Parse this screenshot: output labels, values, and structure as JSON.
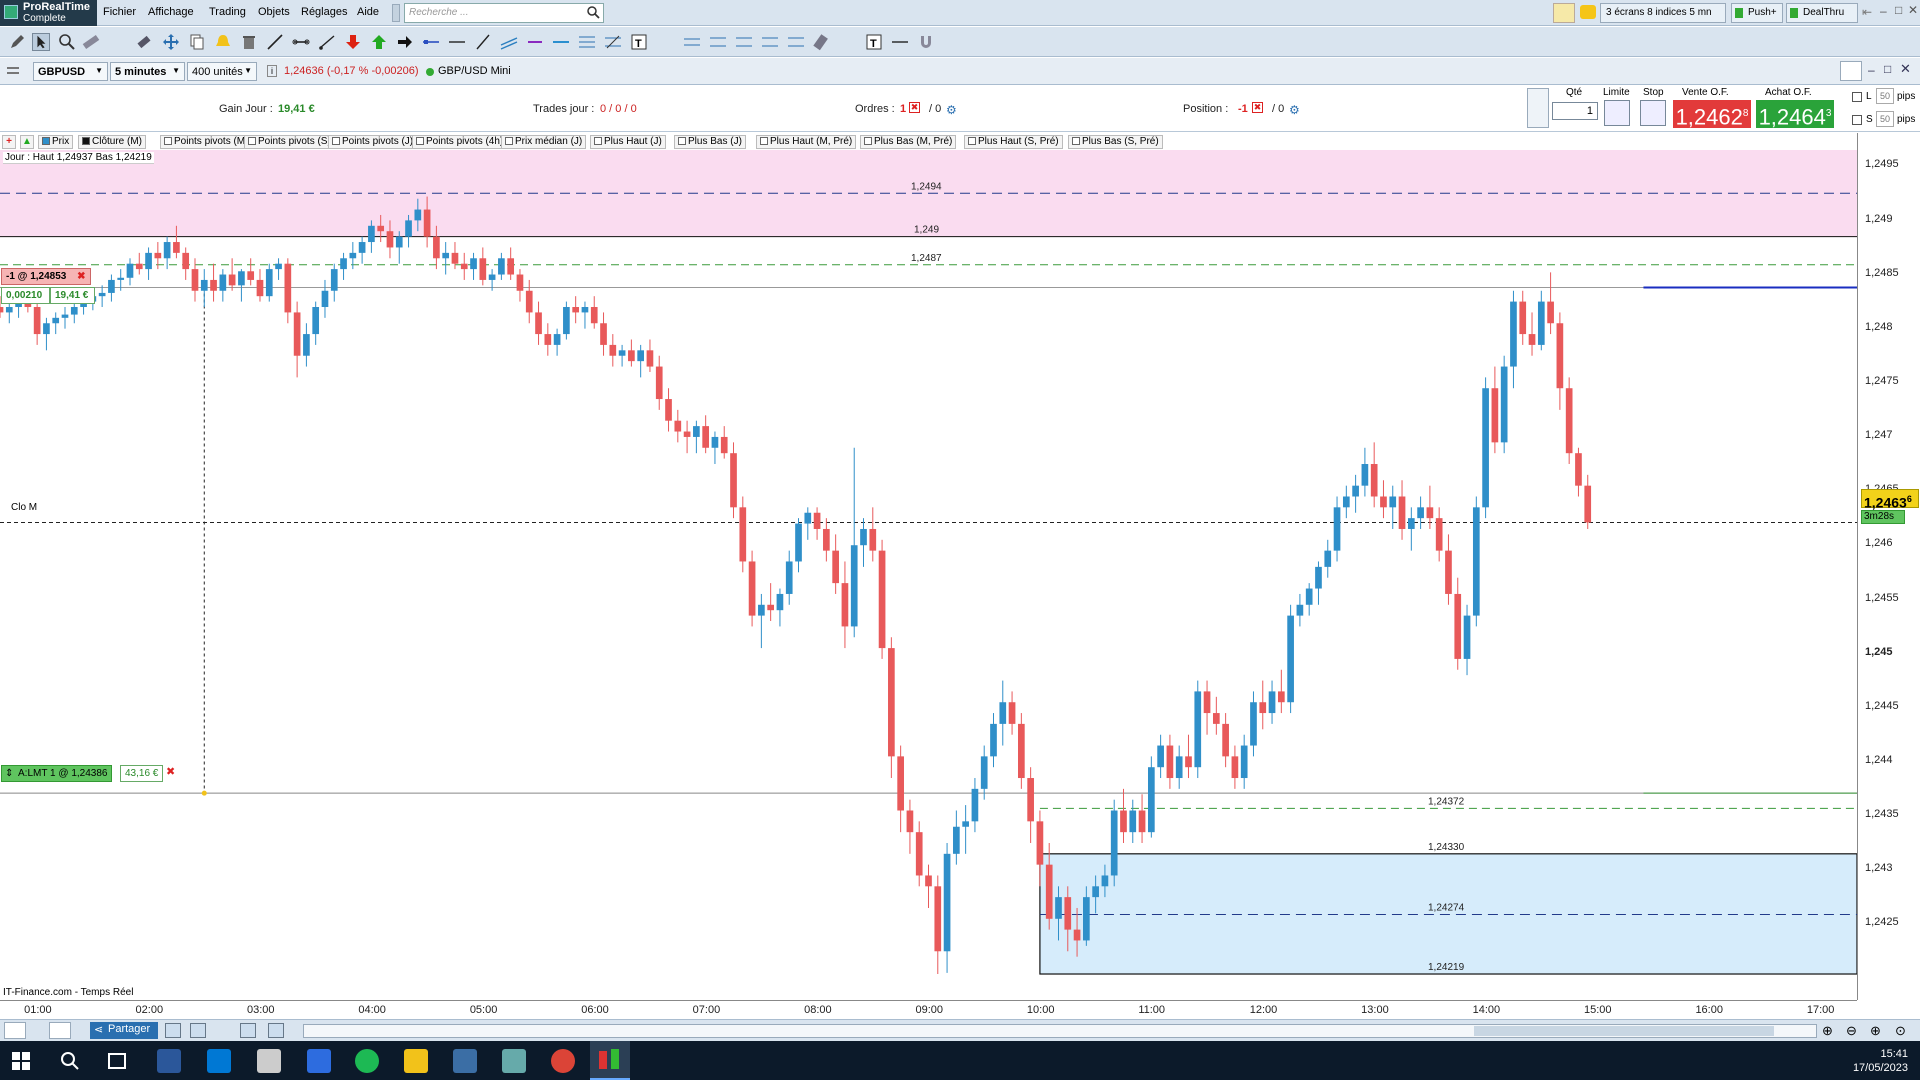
{
  "brand": {
    "line1": "ProRealTime",
    "line2": "Complete"
  },
  "menu": [
    "Fichier",
    "Affichage",
    "Trading",
    "Objets",
    "Réglages",
    "Aide"
  ],
  "search": {
    "placeholder": "Recherche ..."
  },
  "right_top": {
    "screens": "3 écrans 8 indices 5 mn",
    "push": "Push+",
    "dealthru": "DealThru"
  },
  "instrument": {
    "symbol": "GBPUSD",
    "timeframe": "5 minutes",
    "units": "400 unités",
    "quote": "1,24636 (-0,17 % -0,00206)",
    "name": "GBP/USD Mini"
  },
  "panel": {
    "gain_label": "Gain Jour :",
    "gain_value": "19,41 €",
    "trades_label": "Trades jour :",
    "trades_value": "0 / 0 / 0",
    "ordres_label": "Ordres :",
    "ordres_v1": "1",
    "ordres_v2": "/ 0",
    "position_label": "Position :",
    "position_v1": "-1",
    "position_v2": "/ 0",
    "qty_label": "Qté",
    "qty_value": "1",
    "limite_label": "Limite",
    "stop_label": "Stop",
    "vente_label": "Vente O.F.",
    "vente_value": "1,2462",
    "vente_sup": "8",
    "achat_label": "Achat O.F.",
    "achat_value": "1,2464",
    "achat_sup": "3",
    "l_label": "L",
    "s_label": "S",
    "l_pips": "50",
    "s_pips": "50",
    "pips": "pips"
  },
  "legend": [
    "Prix",
    "Clôture (M)",
    "Points pivots (M)",
    "Points pivots (S)",
    "Points pivots (J)",
    "Points pivots (4h)",
    "Prix médian (J)",
    "Plus Haut (J)",
    "Plus Bas (J)",
    "Plus Haut (M, Pré)",
    "Plus Bas (M, Pré)",
    "Plus Haut (S, Pré)",
    "Plus Bas (S, Pré)"
  ],
  "chart_labels": {
    "day_info": "Jour : Haut 1,24937 Bas 1,24219",
    "clo_m": "Clo M",
    "source": "IT-Finance.com - Temps Réel",
    "lvl_12494": "1,2494",
    "lvl_1249": "1,249",
    "lvl_12487": "1,2487",
    "lvl_124372": "1,24372",
    "lvl_124330": "1,24330",
    "lvl_124274": "1,24274",
    "lvl_124219": "1,24219"
  },
  "orders": {
    "position": "-1 @ 1,24853",
    "pl_pts": "0,00210",
    "pl_eur": "19,41 €",
    "limit_order": "A:LMT  1 @ 1,24386",
    "limit_eur": "43,16 €"
  },
  "price_axis": {
    "ticks": [
      "1,2495",
      "1,249",
      "1,2485",
      "1,248",
      "1,2475",
      "1,247",
      "1,2465",
      "1,246",
      "1,2455",
      "1,245",
      "1,2445",
      "1,244",
      "1,2435",
      "1,243",
      "1,2425"
    ],
    "current": "1,2463",
    "current_sup": "6",
    "countdown": "3m28s"
  },
  "time_axis": [
    "01:00",
    "02:00",
    "03:00",
    "04:00",
    "05:00",
    "06:00",
    "07:00",
    "08:00",
    "09:00",
    "10:00",
    "11:00",
    "12:00",
    "13:00",
    "14:00",
    "15:00",
    "16:00",
    "17:00"
  ],
  "bottom": {
    "share": "Partager"
  },
  "clock": {
    "time": "15:41",
    "date": "17/05/2023"
  },
  "colors": {
    "bull": "#2f8fc9",
    "bear": "#e8595a",
    "pink_zone": "#fadcf0",
    "blue_zone": "#d6ecfb"
  },
  "chart_data": {
    "type": "candlestick",
    "y_range": [
      1.24195,
      1.2498
    ],
    "x_range": [
      "00:40",
      "17:20"
    ],
    "candles_start": "00:40",
    "interval_minutes": 5,
    "ohlc": [
      [
        1.24835,
        1.24845,
        1.24825,
        1.2483
      ],
      [
        1.2483,
        1.2484,
        1.2482,
        1.24835
      ],
      [
        1.24835,
        1.24845,
        1.24825,
        1.2484
      ],
      [
        1.2484,
        1.2485,
        1.2483,
        1.24835
      ],
      [
        1.24835,
        1.24845,
        1.248,
        1.2481
      ],
      [
        1.2481,
        1.24825,
        1.24795,
        1.2482
      ],
      [
        1.2482,
        1.2483,
        1.2481,
        1.24825
      ],
      [
        1.24825,
        1.24835,
        1.24815,
        1.24828
      ],
      [
        1.24828,
        1.2484,
        1.2482,
        1.24835
      ],
      [
        1.24835,
        1.24845,
        1.24828,
        1.2484
      ],
      [
        1.2484,
        1.2485,
        1.24832,
        1.24845
      ],
      [
        1.24845,
        1.24855,
        1.24835,
        1.24848
      ],
      [
        1.24848,
        1.24865,
        1.2484,
        1.2486
      ],
      [
        1.2486,
        1.2487,
        1.2485,
        1.24862
      ],
      [
        1.24862,
        1.2488,
        1.24855,
        1.24875
      ],
      [
        1.24875,
        1.24885,
        1.24865,
        1.2487
      ],
      [
        1.2487,
        1.2489,
        1.2486,
        1.24885
      ],
      [
        1.24885,
        1.24895,
        1.2487,
        1.2488
      ],
      [
        1.2488,
        1.249,
        1.2487,
        1.24895
      ],
      [
        1.24895,
        1.2491,
        1.2488,
        1.24885
      ],
      [
        1.24885,
        1.2489,
        1.2486,
        1.2487
      ],
      [
        1.2487,
        1.2488,
        1.2484,
        1.2485
      ],
      [
        1.2485,
        1.2487,
        1.24835,
        1.2486
      ],
      [
        1.2486,
        1.24875,
        1.2484,
        1.2485
      ],
      [
        1.2485,
        1.2487,
        1.2484,
        1.24865
      ],
      [
        1.24865,
        1.2488,
        1.2485,
        1.24855
      ],
      [
        1.24855,
        1.2487,
        1.2484,
        1.24868
      ],
      [
        1.24868,
        1.2488,
        1.24855,
        1.2486
      ],
      [
        1.2486,
        1.2487,
        1.2484,
        1.24845
      ],
      [
        1.24845,
        1.24875,
        1.2484,
        1.2487
      ],
      [
        1.2487,
        1.2488,
        1.2486,
        1.24875
      ],
      [
        1.24875,
        1.2488,
        1.2482,
        1.2483
      ],
      [
        1.2483,
        1.2484,
        1.2477,
        1.2479
      ],
      [
        1.2479,
        1.2482,
        1.2478,
        1.2481
      ],
      [
        1.2481,
        1.2484,
        1.248,
        1.24835
      ],
      [
        1.24835,
        1.2486,
        1.24825,
        1.2485
      ],
      [
        1.2485,
        1.24875,
        1.2484,
        1.2487
      ],
      [
        1.2487,
        1.24885,
        1.2486,
        1.2488
      ],
      [
        1.2488,
        1.24895,
        1.2487,
        1.24885
      ],
      [
        1.24885,
        1.249,
        1.24875,
        1.24895
      ],
      [
        1.24895,
        1.24915,
        1.24885,
        1.2491
      ],
      [
        1.2491,
        1.2492,
        1.24895,
        1.24905
      ],
      [
        1.24905,
        1.24915,
        1.2488,
        1.2489
      ],
      [
        1.2489,
        1.24905,
        1.24875,
        1.249
      ],
      [
        1.249,
        1.2492,
        1.2489,
        1.24915
      ],
      [
        1.24915,
        1.24935,
        1.24905,
        1.24925
      ],
      [
        1.24925,
        1.24937,
        1.2489,
        1.249
      ],
      [
        1.249,
        1.2491,
        1.2487,
        1.2488
      ],
      [
        1.2488,
        1.24895,
        1.24865,
        1.24885
      ],
      [
        1.24885,
        1.24895,
        1.2487,
        1.24875
      ],
      [
        1.24875,
        1.24885,
        1.2486,
        1.2487
      ],
      [
        1.2487,
        1.24885,
        1.2486,
        1.2488
      ],
      [
        1.2488,
        1.2489,
        1.24855,
        1.2486
      ],
      [
        1.2486,
        1.2487,
        1.2485,
        1.24865
      ],
      [
        1.24865,
        1.24885,
        1.2486,
        1.2488
      ],
      [
        1.2488,
        1.2489,
        1.2486,
        1.24865
      ],
      [
        1.24865,
        1.2487,
        1.2484,
        1.2485
      ],
      [
        1.2485,
        1.2486,
        1.2482,
        1.2483
      ],
      [
        1.2483,
        1.2484,
        1.248,
        1.2481
      ],
      [
        1.2481,
        1.2482,
        1.2479,
        1.248
      ],
      [
        1.248,
        1.24815,
        1.2479,
        1.2481
      ],
      [
        1.2481,
        1.2484,
        1.24805,
        1.24835
      ],
      [
        1.24835,
        1.24845,
        1.2482,
        1.2483
      ],
      [
        1.2483,
        1.2484,
        1.24815,
        1.24835
      ],
      [
        1.24835,
        1.24845,
        1.24815,
        1.2482
      ],
      [
        1.2482,
        1.2483,
        1.2479,
        1.248
      ],
      [
        1.248,
        1.2481,
        1.2478,
        1.2479
      ],
      [
        1.2479,
        1.248,
        1.2478,
        1.24795
      ],
      [
        1.24795,
        1.24805,
        1.2478,
        1.24785
      ],
      [
        1.24785,
        1.248,
        1.2477,
        1.24795
      ],
      [
        1.24795,
        1.24805,
        1.24775,
        1.2478
      ],
      [
        1.2478,
        1.2479,
        1.2474,
        1.2475
      ],
      [
        1.2475,
        1.2476,
        1.2472,
        1.2473
      ],
      [
        1.2473,
        1.2474,
        1.2471,
        1.2472
      ],
      [
        1.2472,
        1.2473,
        1.247,
        1.24715
      ],
      [
        1.24715,
        1.2473,
        1.247,
        1.24725
      ],
      [
        1.24725,
        1.24735,
        1.247,
        1.24705
      ],
      [
        1.24705,
        1.2472,
        1.2469,
        1.24715
      ],
      [
        1.24715,
        1.24725,
        1.24695,
        1.247
      ],
      [
        1.247,
        1.2471,
        1.2464,
        1.2465
      ],
      [
        1.2465,
        1.2466,
        1.2459,
        1.246
      ],
      [
        1.246,
        1.2461,
        1.2454,
        1.2455
      ],
      [
        1.2455,
        1.2457,
        1.2452,
        1.2456
      ],
      [
        1.2456,
        1.2458,
        1.24545,
        1.24555
      ],
      [
        1.24555,
        1.24575,
        1.2454,
        1.2457
      ],
      [
        1.2457,
        1.2461,
        1.2456,
        1.246
      ],
      [
        1.246,
        1.2464,
        1.2459,
        1.24635
      ],
      [
        1.24635,
        1.2465,
        1.2462,
        1.24645
      ],
      [
        1.24645,
        1.2465,
        1.2462,
        1.2463
      ],
      [
        1.2463,
        1.2464,
        1.246,
        1.2461
      ],
      [
        1.2461,
        1.24625,
        1.2457,
        1.2458
      ],
      [
        1.2458,
        1.246,
        1.2452,
        1.2454
      ],
      [
        1.2454,
        1.24705,
        1.2453,
        1.24615
      ],
      [
        1.24615,
        1.2464,
        1.24595,
        1.2463
      ],
      [
        1.2463,
        1.2465,
        1.246,
        1.2461
      ],
      [
        1.2461,
        1.2462,
        1.2451,
        1.2452
      ],
      [
        1.2452,
        1.2453,
        1.244,
        1.2442
      ],
      [
        1.2442,
        1.2443,
        1.2435,
        1.2437
      ],
      [
        1.2437,
        1.2438,
        1.2433,
        1.2435
      ],
      [
        1.2435,
        1.2436,
        1.243,
        1.2431
      ],
      [
        1.2431,
        1.2432,
        1.2428,
        1.243
      ],
      [
        1.243,
        1.2431,
        1.24219,
        1.2424
      ],
      [
        1.2424,
        1.2434,
        1.2422,
        1.2433
      ],
      [
        1.2433,
        1.2437,
        1.2432,
        1.24355
      ],
      [
        1.24355,
        1.24375,
        1.2433,
        1.2436
      ],
      [
        1.2436,
        1.244,
        1.2435,
        1.2439
      ],
      [
        1.2439,
        1.2443,
        1.2438,
        1.2442
      ],
      [
        1.2442,
        1.2446,
        1.2441,
        1.2445
      ],
      [
        1.2445,
        1.2449,
        1.2443,
        1.2447
      ],
      [
        1.2447,
        1.2448,
        1.2444,
        1.2445
      ],
      [
        1.2445,
        1.2446,
        1.2439,
        1.244
      ],
      [
        1.244,
        1.2441,
        1.2434,
        1.2436
      ],
      [
        1.2436,
        1.2437,
        1.243,
        1.2432
      ],
      [
        1.2432,
        1.2434,
        1.2426,
        1.2427
      ],
      [
        1.2427,
        1.243,
        1.2425,
        1.2429
      ],
      [
        1.2429,
        1.243,
        1.2424,
        1.2426
      ],
      [
        1.2426,
        1.2428,
        1.24235,
        1.2425
      ],
      [
        1.2425,
        1.243,
        1.24245,
        1.2429
      ],
      [
        1.2429,
        1.2431,
        1.24275,
        1.243
      ],
      [
        1.243,
        1.2432,
        1.2429,
        1.2431
      ],
      [
        1.2431,
        1.2438,
        1.243,
        1.2437
      ],
      [
        1.2437,
        1.2439,
        1.2434,
        1.2435
      ],
      [
        1.2435,
        1.2438,
        1.2434,
        1.2437
      ],
      [
        1.2437,
        1.24385,
        1.2434,
        1.2435
      ],
      [
        1.2435,
        1.2442,
        1.24345,
        1.2441
      ],
      [
        1.2441,
        1.2444,
        1.244,
        1.2443
      ],
      [
        1.2443,
        1.2444,
        1.2439,
        1.244
      ],
      [
        1.244,
        1.2443,
        1.2439,
        1.2442
      ],
      [
        1.2442,
        1.2444,
        1.244,
        1.2441
      ],
      [
        1.2441,
        1.2449,
        1.244,
        1.2448
      ],
      [
        1.2448,
        1.2449,
        1.2444,
        1.2446
      ],
      [
        1.2446,
        1.24475,
        1.2444,
        1.2445
      ],
      [
        1.2445,
        1.2446,
        1.2441,
        1.2442
      ],
      [
        1.2442,
        1.2443,
        1.2439,
        1.244
      ],
      [
        1.244,
        1.2444,
        1.2439,
        1.2443
      ],
      [
        1.2443,
        1.2448,
        1.2442,
        1.2447
      ],
      [
        1.2447,
        1.2449,
        1.24445,
        1.2446
      ],
      [
        1.2446,
        1.2449,
        1.2445,
        1.2448
      ],
      [
        1.2448,
        1.245,
        1.2446,
        1.2447
      ],
      [
        1.2447,
        1.2456,
        1.2446,
        1.2455
      ],
      [
        1.2455,
        1.2457,
        1.2454,
        1.2456
      ],
      [
        1.2456,
        1.2458,
        1.2455,
        1.24575
      ],
      [
        1.24575,
        1.246,
        1.2456,
        1.24595
      ],
      [
        1.24595,
        1.2462,
        1.24585,
        1.2461
      ],
      [
        1.2461,
        1.2466,
        1.246,
        1.2465
      ],
      [
        1.2465,
        1.2467,
        1.2464,
        1.2466
      ],
      [
        1.2466,
        1.2468,
        1.24645,
        1.2467
      ],
      [
        1.2467,
        1.24705,
        1.2466,
        1.2469
      ],
      [
        1.2469,
        1.2471,
        1.2465,
        1.2466
      ],
      [
        1.2466,
        1.24675,
        1.2464,
        1.2465
      ],
      [
        1.2465,
        1.2467,
        1.2463,
        1.2466
      ],
      [
        1.2466,
        1.24675,
        1.2462,
        1.2463
      ],
      [
        1.2463,
        1.2465,
        1.2461,
        1.2464
      ],
      [
        1.2464,
        1.2466,
        1.2463,
        1.2465
      ],
      [
        1.2465,
        1.2467,
        1.2463,
        1.2464
      ],
      [
        1.2464,
        1.2465,
        1.246,
        1.2461
      ],
      [
        1.2461,
        1.24625,
        1.2456,
        1.2457
      ],
      [
        1.2457,
        1.24585,
        1.245,
        1.2451
      ],
      [
        1.2451,
        1.2456,
        1.24495,
        1.2455
      ],
      [
        1.2455,
        1.2466,
        1.2454,
        1.2465
      ],
      [
        1.2465,
        1.2477,
        1.2464,
        1.2476
      ],
      [
        1.2476,
        1.2478,
        1.247,
        1.2471
      ],
      [
        1.2471,
        1.2479,
        1.247,
        1.2478
      ],
      [
        1.2478,
        1.2485,
        1.2476,
        1.2484
      ],
      [
        1.2484,
        1.2485,
        1.248,
        1.2481
      ],
      [
        1.2481,
        1.2483,
        1.2479,
        1.248
      ],
      [
        1.248,
        1.2485,
        1.24795,
        1.2484
      ],
      [
        1.2484,
        1.24867,
        1.2481,
        1.2482
      ],
      [
        1.2482,
        1.2483,
        1.2474,
        1.2476
      ],
      [
        1.2476,
        1.2477,
        1.2469,
        1.247
      ],
      [
        1.247,
        1.24705,
        1.2466,
        1.2467
      ],
      [
        1.2467,
        1.2468,
        1.2463,
        1.24636
      ]
    ]
  }
}
